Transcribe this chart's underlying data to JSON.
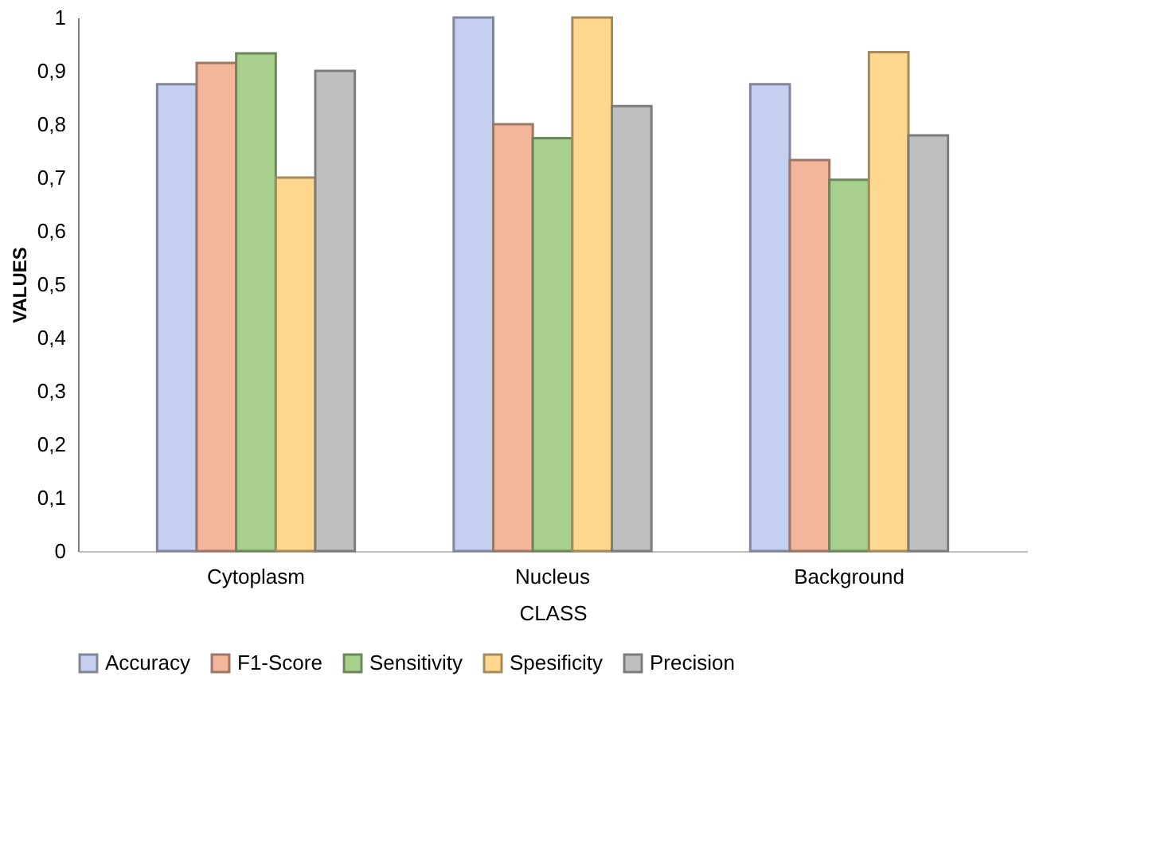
{
  "chart_data": {
    "type": "bar",
    "xlabel": "CLASS",
    "ylabel": "VALUES",
    "categories": [
      "Cytoplasm",
      "Nucleus",
      "Background"
    ],
    "series": [
      {
        "name": "Accuracy",
        "color": "#c5d0f0",
        "values": [
          0.875,
          1.0,
          0.875
        ]
      },
      {
        "name": "F1-Score",
        "color": "#f4b69b",
        "values": [
          0.915,
          0.8,
          0.733
        ]
      },
      {
        "name": "Sensitivity",
        "color": "#a8d08d",
        "values": [
          0.933,
          0.774,
          0.696
        ]
      },
      {
        "name": "Spesificity",
        "color": "#ffd78f",
        "values": [
          0.7,
          1.0,
          0.935
        ]
      },
      {
        "name": "Precision",
        "color": "#bfbfbf",
        "values": [
          0.9,
          0.834,
          0.779
        ]
      }
    ],
    "ylim": [
      0,
      1
    ],
    "yticks": [
      0,
      {
        "value": 0.1,
        "label": "0,1"
      },
      {
        "value": 0.2,
        "label": "0,2"
      },
      {
        "value": 0.3,
        "label": "0,3"
      },
      {
        "value": 0.4,
        "label": "0,4"
      },
      {
        "value": 0.5,
        "label": "0,5"
      },
      {
        "value": 0.6,
        "label": "0,6"
      },
      {
        "value": 0.7,
        "label": "0,7"
      },
      {
        "value": 0.8,
        "label": "0,8"
      },
      {
        "value": 0.9,
        "label": "0,9"
      },
      1
    ],
    "grid": false,
    "legend": "bottom"
  }
}
